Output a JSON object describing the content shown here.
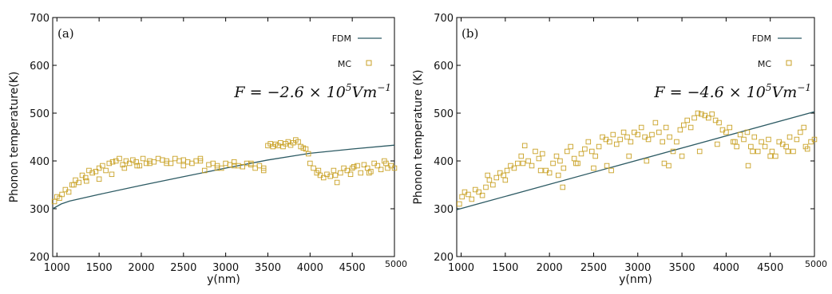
{
  "chart_data": [
    {
      "type": "line",
      "panel_label": "(a)",
      "annotation": {
        "prefix": "F = −2.6 × 10",
        "exp": "5",
        "unit": "Vm",
        "unit_exp": "−1"
      },
      "xlabel": "y(nm)",
      "ylabel": "Phonon temperature(K)",
      "xlim": [
        950,
        5000
      ],
      "ylim": [
        200,
        700
      ],
      "xticks": [
        1000,
        1500,
        2000,
        2500,
        3000,
        3500,
        4000,
        4500,
        5000
      ],
      "xtick_labels": [
        "1000",
        "1500",
        "2000",
        "2500",
        "3000",
        "3500",
        "4000",
        "4500",
        "5000"
      ],
      "yticks": [
        200,
        300,
        400,
        500,
        600,
        700
      ],
      "ytick_labels": [
        "200",
        "300",
        "400",
        "500",
        "600",
        "700"
      ],
      "legend": {
        "position": "top-right",
        "entries": [
          "FDM",
          "MC"
        ]
      },
      "fdm_color": "#2c5a63",
      "mc_color": "#c9a227",
      "series": [
        {
          "name": "FDM",
          "style": "line",
          "x": [
            950,
            1050,
            1150,
            1500,
            2000,
            2500,
            3000,
            3500,
            4000,
            4500,
            5000
          ],
          "y": [
            300,
            310,
            316,
            330,
            349,
            367,
            385,
            402,
            416,
            425,
            433
          ]
        },
        {
          "name": "MC",
          "style": "markers",
          "x": [
            970,
            1000,
            1030,
            1060,
            1100,
            1140,
            1180,
            1220,
            1260,
            1300,
            1340,
            1380,
            1420,
            1460,
            1500,
            1540,
            1580,
            1620,
            1660,
            1700,
            1740,
            1780,
            1820,
            1860,
            1900,
            1940,
            1980,
            2020,
            2060,
            2100,
            2150,
            2200,
            2250,
            2300,
            2350,
            2400,
            2450,
            2500,
            2550,
            2600,
            2650,
            2700,
            2750,
            2800,
            2850,
            2900,
            2950,
            3000,
            3050,
            3100,
            3150,
            3200,
            3250,
            3300,
            3350,
            3400,
            3450,
            3500,
            3530,
            3560,
            3590,
            3620,
            3650,
            3680,
            3710,
            3740,
            3770,
            3800,
            3830,
            3860,
            3890,
            3920,
            3950,
            3980,
            4000,
            4040,
            4080,
            4120,
            4160,
            4200,
            4240,
            4280,
            4320,
            4360,
            4400,
            4440,
            4480,
            4520,
            4560,
            4600,
            4640,
            4680,
            4720,
            4760,
            4800,
            4840,
            4880,
            4920,
            4960,
            5000,
            1200,
            1350,
            1500,
            1650,
            1800,
            1950,
            2100,
            2300,
            2500,
            2700,
            2900,
            3100,
            3300,
            3450,
            4100,
            4300,
            4500,
            4700,
            4900
          ],
          "y": [
            315,
            325,
            322,
            330,
            340,
            335,
            350,
            360,
            355,
            370,
            365,
            380,
            375,
            378,
            385,
            390,
            380,
            395,
            398,
            400,
            405,
            392,
            400,
            395,
            402,
            398,
            390,
            405,
            395,
            400,
            398,
            405,
            402,
            400,
            395,
            405,
            400,
            402,
            398,
            395,
            400,
            405,
            380,
            392,
            395,
            390,
            385,
            395,
            392,
            398,
            390,
            388,
            395,
            392,
            385,
            390,
            385,
            432,
            436,
            430,
            435,
            432,
            438,
            430,
            436,
            440,
            433,
            438,
            444,
            440,
            430,
            427,
            425,
            415,
            395,
            385,
            375,
            370,
            365,
            372,
            368,
            380,
            355,
            375,
            385,
            380,
            372,
            388,
            390,
            375,
            392,
            385,
            378,
            395,
            390,
            382,
            400,
            385,
            390,
            385,
            350,
            358,
            362,
            372,
            385,
            390,
            395,
            395,
            390,
            400,
            385,
            390,
            395,
            380,
            380,
            370,
            385,
            375,
            395
          ]
        }
      ]
    },
    {
      "type": "line",
      "panel_label": "(b)",
      "annotation": {
        "prefix": "F = −4.6 × 10",
        "exp": "5",
        "unit": "Vm",
        "unit_exp": "−1"
      },
      "xlabel": "y(nm)",
      "ylabel": "Phonon temperature (K)",
      "xlim": [
        950,
        5000
      ],
      "ylim": [
        200,
        700
      ],
      "xticks": [
        1000,
        1500,
        2000,
        2500,
        3000,
        3500,
        4000,
        4500,
        5000
      ],
      "xtick_labels": [
        "1000",
        "1500",
        "2000",
        "2500",
        "3000",
        "3500",
        "4000",
        "4500",
        "5000"
      ],
      "yticks": [
        200,
        300,
        400,
        500,
        600,
        700
      ],
      "ytick_labels": [
        "200",
        "300",
        "400",
        "500",
        "600",
        "700"
      ],
      "legend": {
        "position": "top-right",
        "entries": [
          "FDM",
          "MC"
        ]
      },
      "fdm_color": "#2c5a63",
      "mc_color": "#c9a227",
      "series": [
        {
          "name": "FDM",
          "style": "line",
          "x": [
            950,
            5000
          ],
          "y": [
            298,
            503
          ]
        },
        {
          "name": "MC",
          "style": "markers",
          "x": [
            980,
            1010,
            1040,
            1080,
            1120,
            1160,
            1200,
            1240,
            1280,
            1320,
            1360,
            1400,
            1440,
            1480,
            1520,
            1560,
            1600,
            1640,
            1680,
            1720,
            1760,
            1800,
            1840,
            1880,
            1920,
            1960,
            2000,
            2040,
            2080,
            2120,
            2160,
            2200,
            2240,
            2280,
            2320,
            2360,
            2400,
            2440,
            2480,
            2520,
            2560,
            2600,
            2640,
            2680,
            2720,
            2760,
            2800,
            2840,
            2880,
            2920,
            2960,
            3000,
            3040,
            3080,
            3120,
            3160,
            3200,
            3240,
            3280,
            3320,
            3360,
            3400,
            3440,
            3480,
            3520,
            3560,
            3600,
            3640,
            3680,
            3720,
            3760,
            3800,
            3840,
            3880,
            3920,
            3960,
            4000,
            4040,
            4080,
            4120,
            4160,
            4200,
            4240,
            4280,
            4320,
            4360,
            4400,
            4440,
            4480,
            4520,
            4560,
            4600,
            4640,
            4680,
            4720,
            4760,
            4800,
            4840,
            4880,
            4920,
            4960,
            5000,
            1300,
            1500,
            1700,
            1900,
            2100,
            2300,
            2500,
            2700,
            2900,
            3100,
            3300,
            3500,
            3700,
            3900,
            4100,
            4300,
            4500,
            4700,
            4900,
            2150,
            2650,
            3350,
            4250
          ],
          "y": [
            310,
            325,
            335,
            330,
            320,
            340,
            335,
            328,
            345,
            360,
            350,
            365,
            375,
            370,
            380,
            390,
            385,
            395,
            410,
            432,
            400,
            390,
            420,
            405,
            415,
            380,
            375,
            395,
            410,
            400,
            385,
            420,
            430,
            405,
            395,
            415,
            425,
            440,
            420,
            410,
            430,
            450,
            445,
            440,
            455,
            435,
            445,
            460,
            450,
            440,
            460,
            455,
            470,
            450,
            445,
            455,
            480,
            460,
            440,
            470,
            450,
            420,
            440,
            465,
            475,
            485,
            470,
            490,
            500,
            498,
            495,
            490,
            498,
            485,
            480,
            465,
            460,
            470,
            440,
            430,
            455,
            445,
            460,
            430,
            450,
            420,
            440,
            430,
            445,
            420,
            410,
            440,
            435,
            430,
            450,
            420,
            445,
            460,
            470,
            425,
            440,
            445,
            370,
            360,
            395,
            380,
            370,
            395,
            385,
            380,
            410,
            400,
            395,
            410,
            420,
            435,
            440,
            420,
            410,
            420,
            430,
            345,
            390,
            390,
            390
          ]
        }
      ]
    }
  ]
}
